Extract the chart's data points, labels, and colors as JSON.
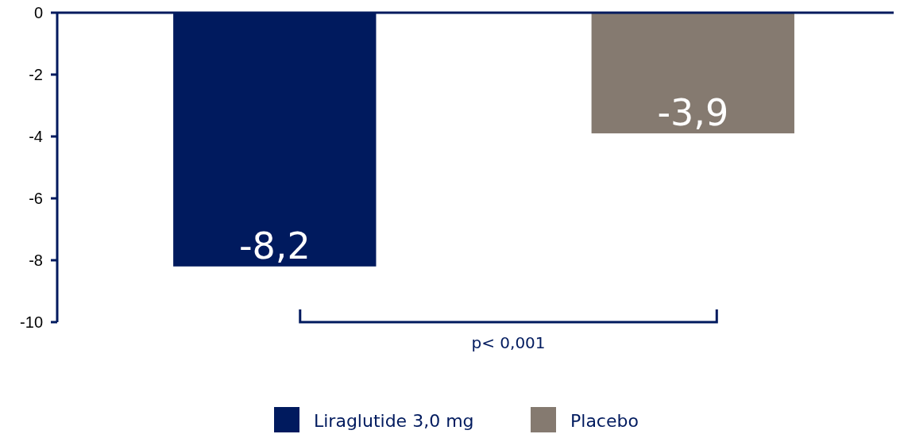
{
  "chart_data": {
    "type": "bar",
    "categories": [
      null
    ],
    "series": [
      {
        "name": "Liraglutide 3,0 mg",
        "color": "#001a5e",
        "values": [
          -8.2
        ],
        "value_labels": [
          "-8,2"
        ]
      },
      {
        "name": "Placebo",
        "color": "#857a70",
        "values": [
          -3.9
        ],
        "value_labels": [
          "-3,9"
        ]
      }
    ],
    "ylim": [
      -10,
      0
    ],
    "yticks": [
      0,
      -2,
      -4,
      -6,
      -8,
      -10
    ],
    "grid": false,
    "legend": "bottom",
    "annotations": [
      "p< 0,001"
    ]
  }
}
